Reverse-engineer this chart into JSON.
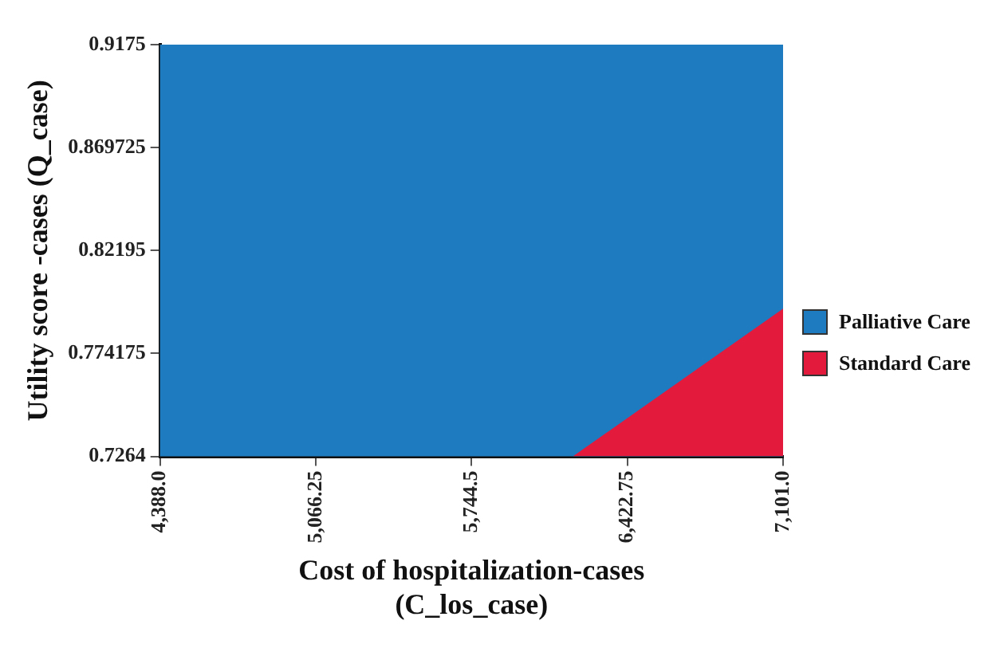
{
  "chart_data": {
    "type": "area",
    "xlabel": "Cost of hospitalization-cases (C_los_case)",
    "ylabel": "Utility score -cases (Q_case)",
    "xlim": [
      4388.0,
      7101.0
    ],
    "xticks": [
      {
        "value": 4388.0,
        "label": "4,388.0"
      },
      {
        "value": 5066.25,
        "label": "5,066.25"
      },
      {
        "value": 5744.5,
        "label": "5,744.5"
      },
      {
        "value": 6422.75,
        "label": "6,422.75"
      },
      {
        "value": 7101.0,
        "label": "7,101.0"
      }
    ],
    "ylim": [
      0.7264,
      0.9175
    ],
    "yticks": [
      0.7264,
      0.774175,
      0.82195,
      0.869725,
      0.9175
    ],
    "bands": [
      {
        "axis": "x",
        "from": 4388.0,
        "to": 7101.0,
        "label": "Palliative Care",
        "color": "#1f7bbf"
      }
    ],
    "series": [
      {
        "name": "Standard Care",
        "color": "#e31a3c",
        "x": [
          6186,
          7101.0
        ],
        "values": [
          0.7264,
          0.795
        ]
      }
    ],
    "legend": "right",
    "grid": false
  }
}
